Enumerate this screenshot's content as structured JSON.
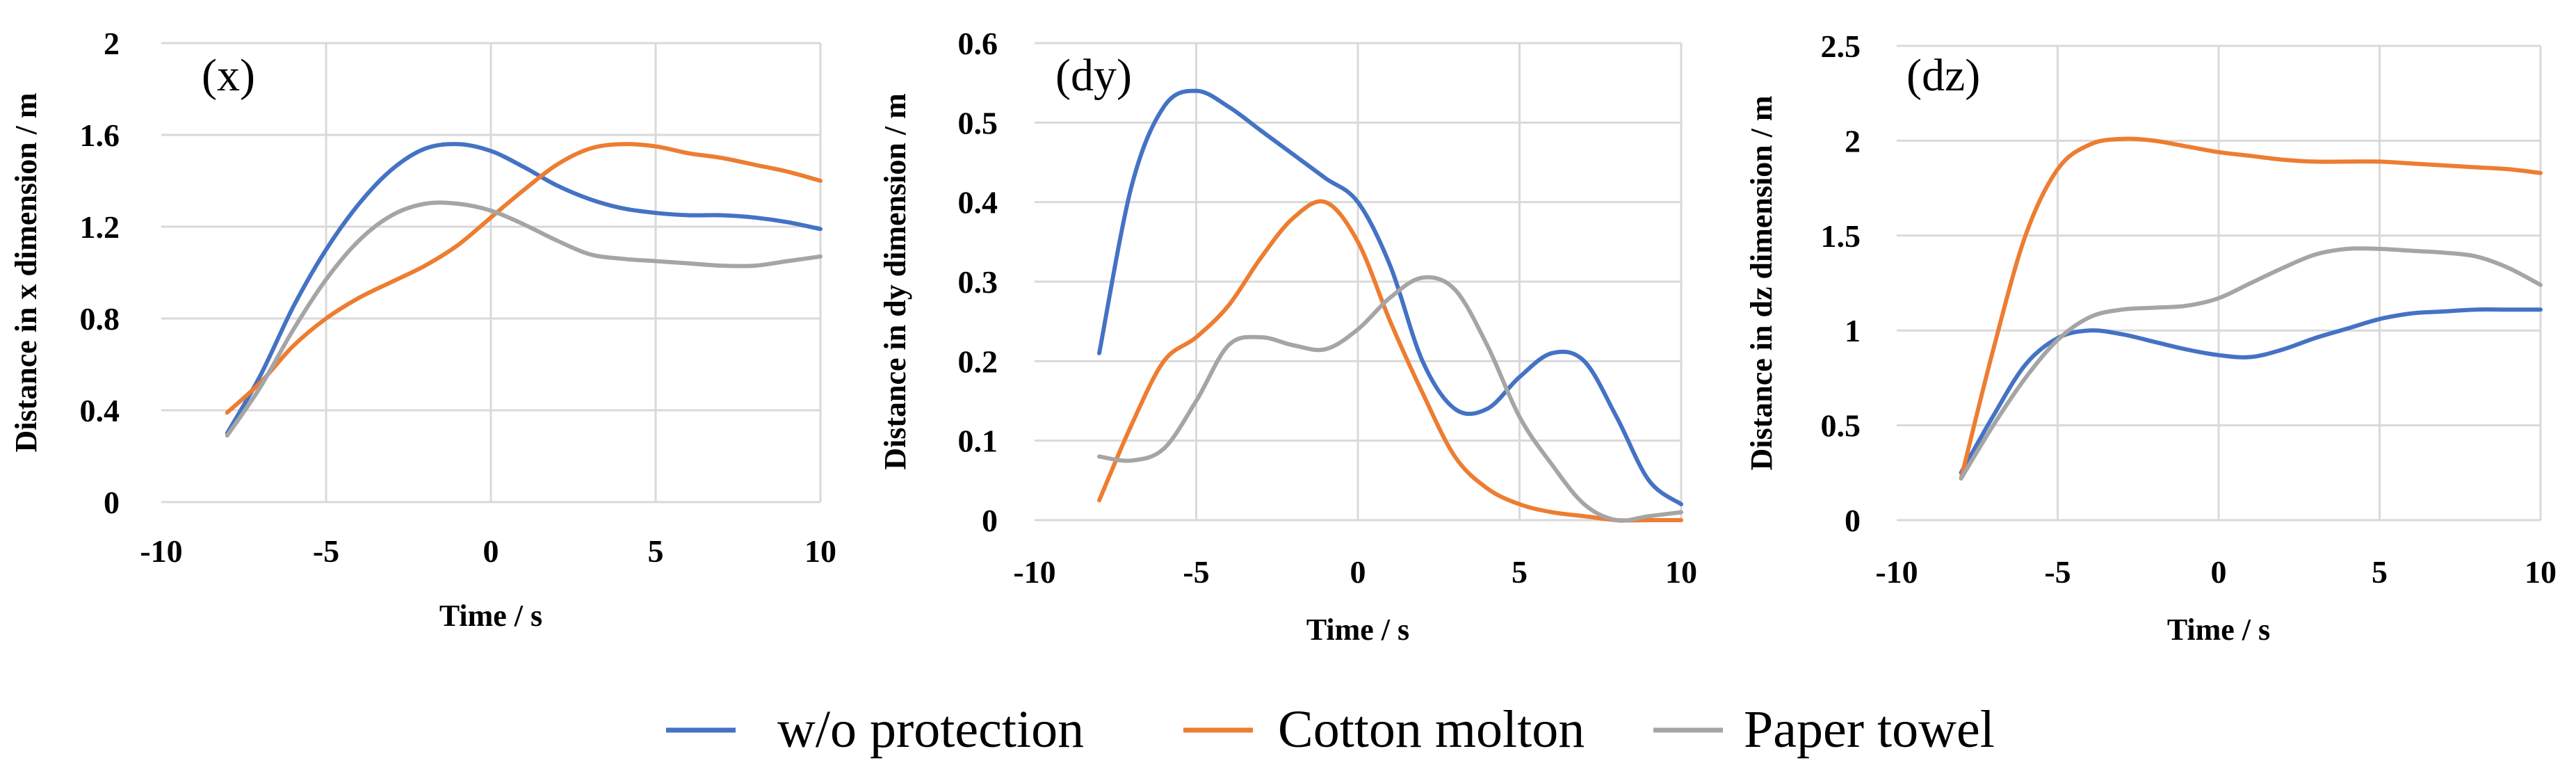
{
  "chart_data": [
    {
      "type": "line",
      "panel_label": "(x)",
      "xlabel": "Time / s",
      "ylabel": "Distance in x dimension / m",
      "xlim": [
        -10,
        10
      ],
      "ylim": [
        0,
        2
      ],
      "xticks": [
        -10,
        -5,
        0,
        5,
        10
      ],
      "xtick_labels": [
        "-10",
        "-5",
        "0",
        "5",
        "10"
      ],
      "yticks": [
        0,
        0.4,
        0.8,
        1.2,
        1.6,
        2
      ],
      "ytick_labels": [
        "0",
        "0.4",
        "0.8",
        "1.2",
        "1.6",
        "2"
      ],
      "grid": true,
      "series": [
        {
          "name": "w/o protection",
          "x": [
            -8,
            -7,
            -6,
            -5,
            -4,
            -3,
            -2,
            -1,
            0,
            1,
            2,
            3,
            4,
            5,
            6,
            7,
            8,
            9,
            10
          ],
          "y": [
            0.3,
            0.55,
            0.85,
            1.1,
            1.3,
            1.45,
            1.54,
            1.56,
            1.53,
            1.46,
            1.38,
            1.32,
            1.28,
            1.26,
            1.25,
            1.25,
            1.24,
            1.22,
            1.19
          ]
        },
        {
          "name": "Cotton molton",
          "x": [
            -8,
            -7,
            -6,
            -5,
            -4,
            -3,
            -2,
            -1,
            0,
            1,
            2,
            3,
            4,
            5,
            6,
            7,
            8,
            9,
            10
          ],
          "y": [
            0.39,
            0.52,
            0.68,
            0.8,
            0.89,
            0.96,
            1.03,
            1.12,
            1.24,
            1.36,
            1.47,
            1.54,
            1.56,
            1.55,
            1.52,
            1.5,
            1.47,
            1.44,
            1.4
          ]
        },
        {
          "name": "Paper towel",
          "x": [
            -8,
            -7,
            -6,
            -5,
            -4,
            -3,
            -2,
            -1,
            0,
            1,
            2,
            3,
            4,
            5,
            6,
            7,
            8,
            9,
            10
          ],
          "y": [
            0.29,
            0.5,
            0.75,
            0.97,
            1.14,
            1.25,
            1.3,
            1.3,
            1.27,
            1.21,
            1.14,
            1.08,
            1.06,
            1.05,
            1.04,
            1.03,
            1.03,
            1.05,
            1.07
          ]
        }
      ]
    },
    {
      "type": "line",
      "panel_label": "(dy)",
      "xlabel": "Time / s",
      "ylabel": "Distance in dy dimension / m",
      "xlim": [
        -10,
        10
      ],
      "ylim": [
        0,
        0.6
      ],
      "xticks": [
        -10,
        -5,
        0,
        5,
        10
      ],
      "xtick_labels": [
        "-10",
        "-5",
        "0",
        "5",
        "10"
      ],
      "yticks": [
        0,
        0.1,
        0.2,
        0.3,
        0.4,
        0.5,
        0.6
      ],
      "ytick_labels": [
        "0",
        "0.1",
        "0.2",
        "0.3",
        "0.4",
        "0.5",
        "0.6"
      ],
      "grid": true,
      "series": [
        {
          "name": "w/o protection",
          "x": [
            -8,
            -7,
            -6,
            -5,
            -4,
            -3,
            -2,
            -1,
            0,
            1,
            2,
            3,
            4,
            5,
            6,
            7,
            8,
            9,
            10
          ],
          "y": [
            0.21,
            0.42,
            0.52,
            0.54,
            0.52,
            0.49,
            0.46,
            0.43,
            0.4,
            0.32,
            0.2,
            0.14,
            0.14,
            0.18,
            0.21,
            0.2,
            0.13,
            0.05,
            0.02
          ]
        },
        {
          "name": "Cotton molton",
          "x": [
            -8,
            -7,
            -6,
            -5,
            -4,
            -3,
            -2,
            -1,
            0,
            1,
            2,
            3,
            4,
            5,
            6,
            7,
            8,
            9,
            10
          ],
          "y": [
            0.025,
            0.12,
            0.2,
            0.23,
            0.27,
            0.33,
            0.38,
            0.4,
            0.35,
            0.25,
            0.16,
            0.08,
            0.04,
            0.02,
            0.01,
            0.005,
            0.0,
            0.0,
            0.0
          ]
        },
        {
          "name": "Paper towel",
          "x": [
            -8,
            -7,
            -6,
            -5,
            -4,
            -3,
            -2,
            -1,
            0,
            1,
            2,
            3,
            4,
            5,
            6,
            7,
            8,
            9,
            10
          ],
          "y": [
            0.08,
            0.075,
            0.09,
            0.15,
            0.22,
            0.23,
            0.22,
            0.215,
            0.24,
            0.28,
            0.305,
            0.29,
            0.22,
            0.13,
            0.07,
            0.02,
            0.0,
            0.005,
            0.01
          ]
        }
      ]
    },
    {
      "type": "line",
      "panel_label": "(dz)",
      "xlabel": "Time / s",
      "ylabel": "Distance in dz dimension / m",
      "xlim": [
        -10,
        10
      ],
      "ylim": [
        0,
        2.5
      ],
      "xticks": [
        -10,
        -5,
        0,
        5,
        10
      ],
      "xtick_labels": [
        "-10",
        "-5",
        "0",
        "5",
        "10"
      ],
      "yticks": [
        0,
        0.5,
        1,
        1.5,
        2,
        2.5
      ],
      "ytick_labels": [
        "0",
        "0.5",
        "1",
        "1.5",
        "2",
        "2.5"
      ],
      "grid": true,
      "series": [
        {
          "name": "w/o protection",
          "x": [
            -8,
            -7,
            -6,
            -5,
            -4,
            -3,
            -2,
            -1,
            0,
            1,
            2,
            3,
            4,
            5,
            6,
            7,
            8,
            9,
            10
          ],
          "y": [
            0.25,
            0.55,
            0.82,
            0.96,
            1.0,
            0.98,
            0.94,
            0.9,
            0.87,
            0.86,
            0.9,
            0.96,
            1.01,
            1.06,
            1.09,
            1.1,
            1.11,
            1.11,
            1.11
          ]
        },
        {
          "name": "Cotton molton",
          "x": [
            -8,
            -7,
            -6,
            -5,
            -4,
            -3,
            -2,
            -1,
            0,
            1,
            2,
            3,
            4,
            5,
            6,
            7,
            8,
            9,
            10
          ],
          "y": [
            0.22,
            0.9,
            1.5,
            1.85,
            1.98,
            2.01,
            2.0,
            1.97,
            1.94,
            1.92,
            1.9,
            1.89,
            1.89,
            1.89,
            1.88,
            1.87,
            1.86,
            1.85,
            1.83
          ]
        },
        {
          "name": "Paper towel",
          "x": [
            -8,
            -7,
            -6,
            -5,
            -4,
            -3,
            -2,
            -1,
            0,
            1,
            2,
            3,
            4,
            5,
            6,
            7,
            8,
            9,
            10
          ],
          "y": [
            0.22,
            0.5,
            0.75,
            0.95,
            1.07,
            1.11,
            1.12,
            1.13,
            1.17,
            1.25,
            1.33,
            1.4,
            1.43,
            1.43,
            1.42,
            1.41,
            1.39,
            1.33,
            1.24
          ]
        }
      ]
    }
  ],
  "legend": {
    "items": [
      "w/o protection",
      "Cotton molton",
      "Paper towel"
    ],
    "placement": "bottom-center"
  },
  "colors": {
    "w/o protection": "#4472C4",
    "Cotton molton": "#ED7D31",
    "Paper towel": "#A5A5A5",
    "grid": "#D9D9D9"
  }
}
